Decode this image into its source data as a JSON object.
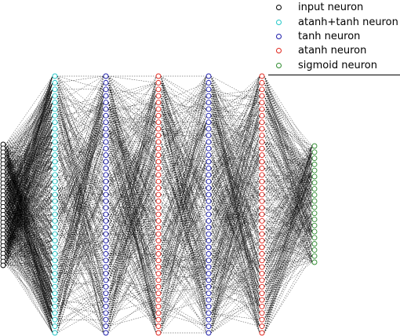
{
  "legend": {
    "items": [
      {
        "label": "input neuron",
        "color": "#000000"
      },
      {
        "label": "atanh+tanh neuron",
        "color": "#22c7c7"
      },
      {
        "label": "tanh neuron",
        "color": "#1a1aa8"
      },
      {
        "label": "atanh neuron",
        "color": "#e0241b"
      },
      {
        "label": "sigmoid neuron",
        "color": "#2e8b2e"
      }
    ]
  },
  "network": {
    "layers": [
      {
        "type": "input",
        "count": 32,
        "color": "#000000"
      },
      {
        "type": "atanh+tanh",
        "count": 40,
        "color": "#22c7c7"
      },
      {
        "type": "tanh",
        "count": 40,
        "color": "#1a1aa8"
      },
      {
        "type": "atanh",
        "count": 40,
        "color": "#e0241b"
      },
      {
        "type": "tanh",
        "count": 40,
        "color": "#1a1aa8"
      },
      {
        "type": "atanh",
        "count": 40,
        "color": "#e0241b"
      },
      {
        "type": "sigmoid",
        "count": 20,
        "color": "#2e8b2e"
      }
    ],
    "edge_color": "#000000"
  }
}
